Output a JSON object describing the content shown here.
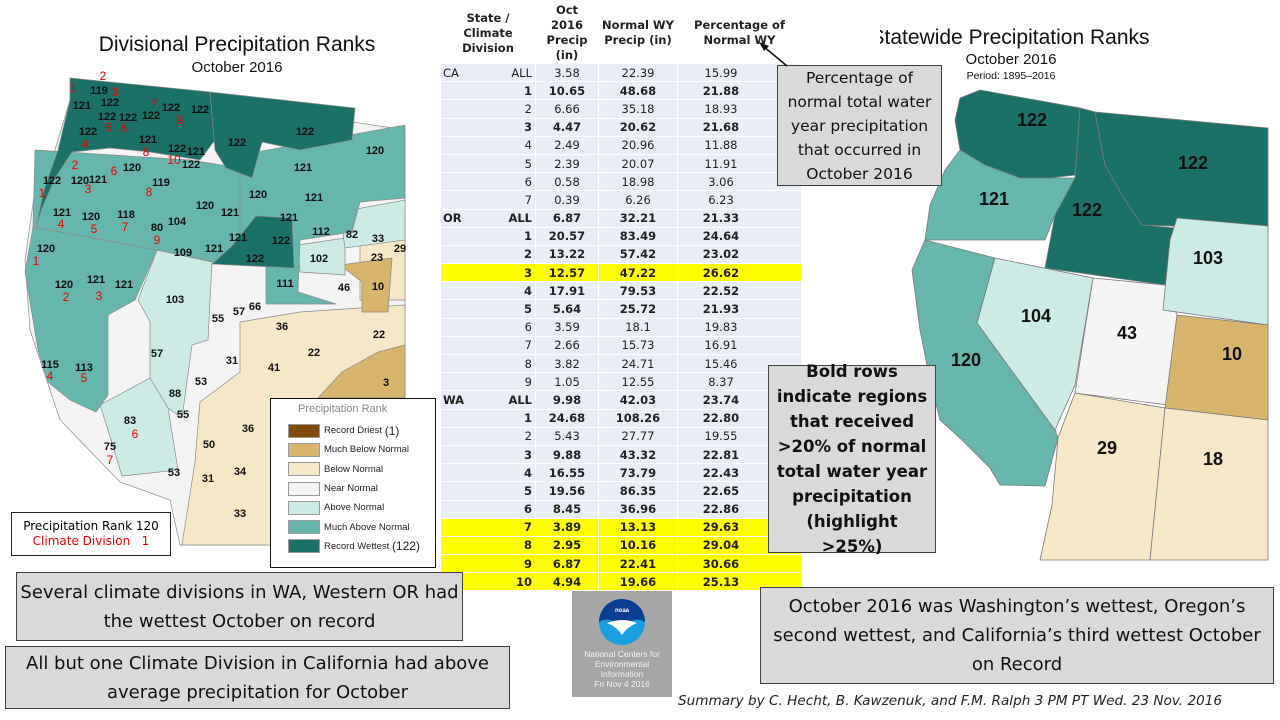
{
  "divisional_map": {
    "title": "Divisional Precipitation Ranks",
    "subtitle": "October 2016",
    "ranks": [
      "119",
      "121",
      "122",
      "122",
      "122",
      "122",
      "122",
      "122",
      "122",
      "121",
      "122",
      "121",
      "122",
      "122",
      "122",
      "120",
      "121",
      "120",
      "122",
      "120",
      "121",
      "119",
      "121",
      "120",
      "118",
      "120",
      "121",
      "120",
      "121",
      "121",
      "80",
      "104",
      "112",
      "82",
      "33",
      "29",
      "121",
      "122",
      "121",
      "109",
      "122",
      "102",
      "23",
      "120",
      "120",
      "121",
      "121",
      "111",
      "46",
      "10",
      "103",
      "55",
      "57",
      "66",
      "36",
      "22",
      "22",
      "57",
      "31",
      "41",
      "3",
      "115",
      "113",
      "53",
      "88",
      "55",
      "83",
      "36",
      "50",
      "75",
      "53",
      "31",
      "34",
      "33"
    ],
    "divisions": [
      "2",
      "1",
      "3",
      "7",
      "9",
      "5",
      "6",
      "4",
      "8",
      "10",
      "2",
      "6",
      "1",
      "3",
      "8",
      "4",
      "5",
      "7",
      "9",
      "1",
      "2",
      "3",
      "4",
      "5",
      "6",
      "7"
    ],
    "key": {
      "line1": "Precipitation Rank 120",
      "line2": "Climate Division",
      "line2_num": "1"
    },
    "legend": {
      "title": "Precipitation Rank",
      "items": [
        {
          "label": "Record Driest",
          "suffix": "(1)",
          "color": "#7f4a0b"
        },
        {
          "label": "Much Below Normal",
          "suffix": "",
          "color": "#d9b46c"
        },
        {
          "label": "Below Normal",
          "suffix": "",
          "color": "#f6e7c6"
        },
        {
          "label": "Near Normal",
          "suffix": "",
          "color": "#f4f4f4"
        },
        {
          "label": "Above Normal",
          "suffix": "",
          "color": "#cdebe5"
        },
        {
          "label": "Much Above Normal",
          "suffix": "",
          "color": "#66b6ad"
        },
        {
          "label": "Record Wettest",
          "suffix": "(122)",
          "color": "#1b7168"
        }
      ]
    }
  },
  "table": {
    "headers": [
      "State / Climate Division",
      "Oct 2016 Precip (in)",
      "Normal WY Precip (in)",
      "Percentage of Normal WY"
    ],
    "rows": [
      {
        "state": "CA",
        "div": "ALL",
        "oct": "3.58",
        "normal": "22.39",
        "pct": "15.99",
        "bold": false,
        "hl": false
      },
      {
        "state": "",
        "div": "1",
        "oct": "10.65",
        "normal": "48.68",
        "pct": "21.88",
        "bold": true,
        "hl": false
      },
      {
        "state": "",
        "div": "2",
        "oct": "6.66",
        "normal": "35.18",
        "pct": "18.93",
        "bold": false,
        "hl": false
      },
      {
        "state": "",
        "div": "3",
        "oct": "4.47",
        "normal": "20.62",
        "pct": "21.68",
        "bold": true,
        "hl": false
      },
      {
        "state": "",
        "div": "4",
        "oct": "2.49",
        "normal": "20.96",
        "pct": "11.88",
        "bold": false,
        "hl": false
      },
      {
        "state": "",
        "div": "5",
        "oct": "2.39",
        "normal": "20.07",
        "pct": "11.91",
        "bold": false,
        "hl": false
      },
      {
        "state": "",
        "div": "6",
        "oct": "0.58",
        "normal": "18.98",
        "pct": "3.06",
        "bold": false,
        "hl": false
      },
      {
        "state": "",
        "div": "7",
        "oct": "0.39",
        "normal": "6.26",
        "pct": "6.23",
        "bold": false,
        "hl": false
      },
      {
        "state": "OR",
        "div": "ALL",
        "oct": "6.87",
        "normal": "32.21",
        "pct": "21.33",
        "bold": true,
        "hl": false
      },
      {
        "state": "",
        "div": "1",
        "oct": "20.57",
        "normal": "83.49",
        "pct": "24.64",
        "bold": true,
        "hl": false
      },
      {
        "state": "",
        "div": "2",
        "oct": "13.22",
        "normal": "57.42",
        "pct": "23.02",
        "bold": true,
        "hl": false
      },
      {
        "state": "",
        "div": "3",
        "oct": "12.57",
        "normal": "47.22",
        "pct": "26.62",
        "bold": true,
        "hl": true
      },
      {
        "state": "",
        "div": "4",
        "oct": "17.91",
        "normal": "79.53",
        "pct": "22.52",
        "bold": true,
        "hl": false
      },
      {
        "state": "",
        "div": "5",
        "oct": "5.64",
        "normal": "25.72",
        "pct": "21.93",
        "bold": true,
        "hl": false
      },
      {
        "state": "",
        "div": "6",
        "oct": "3.59",
        "normal": "18.1",
        "pct": "19.83",
        "bold": false,
        "hl": false
      },
      {
        "state": "",
        "div": "7",
        "oct": "2.66",
        "normal": "15.73",
        "pct": "16.91",
        "bold": false,
        "hl": false
      },
      {
        "state": "",
        "div": "8",
        "oct": "3.82",
        "normal": "24.71",
        "pct": "15.46",
        "bold": false,
        "hl": false
      },
      {
        "state": "",
        "div": "9",
        "oct": "1.05",
        "normal": "12.55",
        "pct": "8.37",
        "bold": false,
        "hl": false
      },
      {
        "state": "WA",
        "div": "ALL",
        "oct": "9.98",
        "normal": "42.03",
        "pct": "23.74",
        "bold": true,
        "hl": false
      },
      {
        "state": "",
        "div": "1",
        "oct": "24.68",
        "normal": "108.26",
        "pct": "22.80",
        "bold": true,
        "hl": false
      },
      {
        "state": "",
        "div": "2",
        "oct": "5.43",
        "normal": "27.77",
        "pct": "19.55",
        "bold": false,
        "hl": false
      },
      {
        "state": "",
        "div": "3",
        "oct": "9.88",
        "normal": "43.32",
        "pct": "22.81",
        "bold": true,
        "hl": false
      },
      {
        "state": "",
        "div": "4",
        "oct": "16.55",
        "normal": "73.79",
        "pct": "22.43",
        "bold": true,
        "hl": false
      },
      {
        "state": "",
        "div": "5",
        "oct": "19.56",
        "normal": "86.35",
        "pct": "22.65",
        "bold": true,
        "hl": false
      },
      {
        "state": "",
        "div": "6",
        "oct": "8.45",
        "normal": "36.96",
        "pct": "22.86",
        "bold": true,
        "hl": false
      },
      {
        "state": "",
        "div": "7",
        "oct": "3.89",
        "normal": "13.13",
        "pct": "29.63",
        "bold": true,
        "hl": true
      },
      {
        "state": "",
        "div": "8",
        "oct": "2.95",
        "normal": "10.16",
        "pct": "29.04",
        "bold": true,
        "hl": true
      },
      {
        "state": "",
        "div": "9",
        "oct": "6.87",
        "normal": "22.41",
        "pct": "30.66",
        "bold": true,
        "hl": true
      },
      {
        "state": "",
        "div": "10",
        "oct": "4.94",
        "normal": "19.66",
        "pct": "25.13",
        "bold": true,
        "hl": true
      }
    ]
  },
  "statewide_map": {
    "title": "Statewide Precipitation Ranks",
    "subtitle": "October 2016",
    "period": "Period: 1895–2016",
    "states": [
      {
        "rank": "122",
        "color": "#1b7168"
      },
      {
        "rank": "121",
        "color": "#66b6ad"
      },
      {
        "rank": "120",
        "color": "#66b6ad"
      },
      {
        "rank": "122",
        "color": "#1b7168"
      },
      {
        "rank": "122",
        "color": "#1b7168"
      },
      {
        "rank": "104",
        "color": "#cdebe5"
      },
      {
        "rank": "43",
        "color": "#f4f4f4"
      },
      {
        "rank": "103",
        "color": "#cdebe5"
      },
      {
        "rank": "10",
        "color": "#d9b46c"
      },
      {
        "rank": "29",
        "color": "#f6e7c6"
      },
      {
        "rank": "18",
        "color": "#f6e7c6"
      }
    ]
  },
  "notes": {
    "pct_note": "Percentage of normal total water year precipitation that occurred in October 2016",
    "bold_note": "Bold rows indicate regions that received >20% of normal total water year precipitation (highlight >25%)",
    "wa_or_note": "Several climate divisions in WA, Western OR had the wettest October on record",
    "ca_note": "All but one Climate Division in California had above average precipitation for October",
    "summary_note": "October 2016 was Washington’s wettest, Oregon’s second wettest, and California’s third wettest October on Record",
    "credit": "Summary by C. Hecht, B. Kawzenuk, and F.M. Ralph 3 PM PT Wed. 23 Nov. 2016"
  },
  "logo": {
    "org": "NOAA",
    "line1": "National Centers for",
    "line2": "Environmental",
    "line3": "Information",
    "date": "Fri Nov  4 2016"
  }
}
